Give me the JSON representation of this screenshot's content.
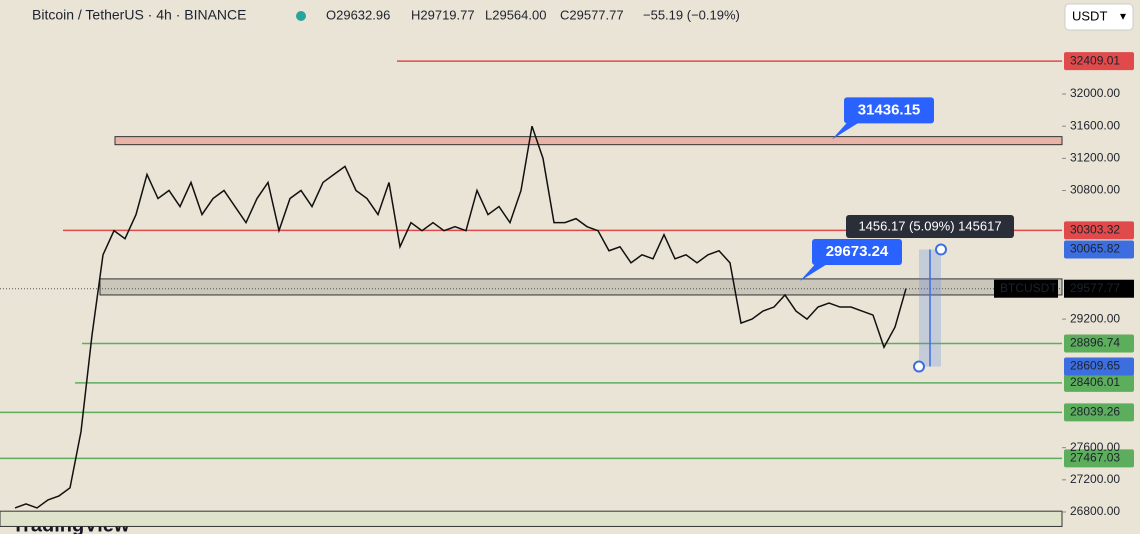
{
  "header": {
    "symbol": "Bitcoin / TetherUS · 4h · BINANCE",
    "open": "O29632.96",
    "high": "H29719.77",
    "low": "L29564.00",
    "close": "C29577.77",
    "change": "−55.19 (−0.19%)",
    "currency": "USDT"
  },
  "price_axis": {
    "ylim": [
      26526,
      33170
    ],
    "ticks": [
      {
        "value": 32000,
        "label": "32000.00"
      },
      {
        "value": 31600,
        "label": "31600.00"
      },
      {
        "value": 31200,
        "label": "31200.00"
      },
      {
        "value": 30800,
        "label": "30800.00"
      },
      {
        "value": 29200,
        "label": "29200.00"
      },
      {
        "value": 27600,
        "label": "27600.00"
      },
      {
        "value": 27200,
        "label": "27200.00"
      },
      {
        "value": 26800,
        "label": "26800.00"
      }
    ]
  },
  "levels": [
    {
      "value": 32409.01,
      "label": "32409.01",
      "color": "#e04a4a"
    },
    {
      "value": 30303.32,
      "label": "30303.32",
      "color": "#e04a4a"
    },
    {
      "value": 28896.74,
      "label": "28896.74",
      "color": "#5cad5c"
    },
    {
      "value": 28406.01,
      "label": "28406.01",
      "color": "#5cad5c"
    },
    {
      "value": 28039.26,
      "label": "28039.26",
      "color": "#5cad5c"
    },
    {
      "value": 27467.03,
      "label": "27467.03",
      "color": "#5cad5c"
    }
  ],
  "zones": [
    {
      "from": 31370,
      "to": 31470,
      "color": "#eab3a8"
    },
    {
      "from": 29500,
      "to": 29700,
      "color": "#cbc6ba"
    },
    {
      "from": 26620,
      "to": 26810,
      "color": "#dfe3cc"
    }
  ],
  "callouts": [
    {
      "value": 31436.15,
      "label": "31436.15"
    },
    {
      "value": 29673.24,
      "label": "29673.24"
    }
  ],
  "measure": {
    "top": 30065.82,
    "top_label": "30065.82",
    "bottom": 28609.65,
    "bottom_label": "28609.65",
    "readout": "1456.17 (5.09%) 145617"
  },
  "current": {
    "value": 29577.77,
    "label": "29577.77",
    "symbol": "BTCUSDT"
  },
  "closes": [
    26850,
    26900,
    26850,
    26950,
    27000,
    27100,
    27800,
    29000,
    30000,
    30300,
    30200,
    30500,
    31000,
    30700,
    30800,
    30600,
    30900,
    30500,
    30700,
    30800,
    30600,
    30400,
    30700,
    30900,
    30300,
    30700,
    30800,
    30600,
    30900,
    31000,
    31100,
    30800,
    30700,
    30500,
    30900,
    30100,
    30400,
    30300,
    30400,
    30300,
    30350,
    30300,
    30800,
    30500,
    30600,
    30400,
    30800,
    31600,
    31200,
    30400,
    30400,
    30450,
    30350,
    30300,
    30050,
    30100,
    29900,
    30000,
    29950,
    30250,
    29950,
    30000,
    29900,
    30000,
    30050,
    29900,
    29150,
    29200,
    29300,
    29350,
    29500,
    29300,
    29200,
    29350,
    29400,
    29350,
    29350,
    29300,
    29250,
    28850,
    29100,
    29580
  ],
  "watermark": "TradingView"
}
